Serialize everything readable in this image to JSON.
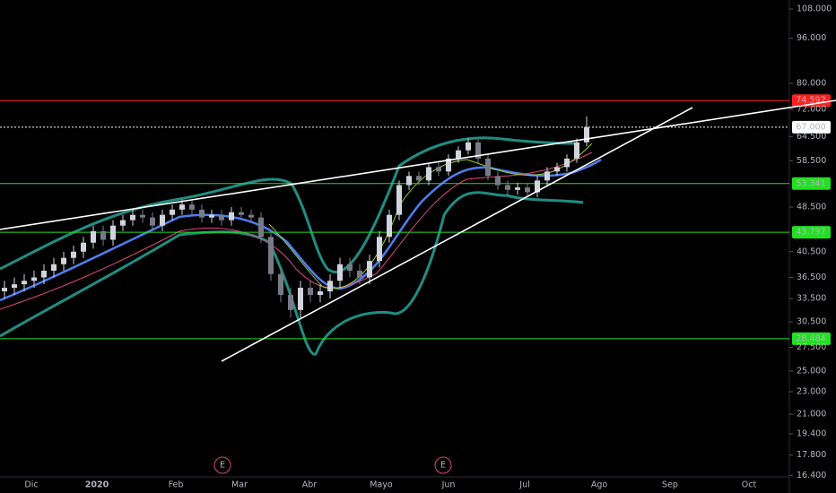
{
  "chart_data": {
    "type": "candlestick",
    "log_scale": true,
    "ylim": [
      16.3,
      112
    ],
    "yticks": [
      {
        "value": 108,
        "label": "108.000"
      },
      {
        "value": 96,
        "label": "96.000"
      },
      {
        "value": 80,
        "label": "80.000"
      },
      {
        "value": 72,
        "label": "72.000"
      },
      {
        "value": 64.5,
        "label": "64.500"
      },
      {
        "value": 58.5,
        "label": "58.500"
      },
      {
        "value": 48.5,
        "label": "48.500"
      },
      {
        "value": 40.5,
        "label": "40.500"
      },
      {
        "value": 36.5,
        "label": "36.500"
      },
      {
        "value": 33.5,
        "label": "33.500"
      },
      {
        "value": 30.5,
        "label": "30.500"
      },
      {
        "value": 27.5,
        "label": "27.500"
      },
      {
        "value": 25,
        "label": "25.000"
      },
      {
        "value": 23,
        "label": "23.000"
      },
      {
        "value": 21,
        "label": "21.000"
      },
      {
        "value": 19.4,
        "label": "19.400"
      },
      {
        "value": 17.8,
        "label": "17.800"
      },
      {
        "value": 16.4,
        "label": "16.400"
      }
    ],
    "xlabels": [
      "Dic",
      "2020",
      "Feb",
      "Mar",
      "Abr",
      "Mayo",
      "Jun",
      "Jul",
      "Ago",
      "Sep",
      "Oct"
    ],
    "events": [
      "E",
      "E"
    ],
    "levels": [
      {
        "value": 74.592,
        "label": "74.592",
        "color": "#ff1f1f"
      },
      {
        "value": 67,
        "label": "67.000",
        "color": "#ffffff"
      },
      {
        "value": 53.341,
        "label": "53.341",
        "color": "#22e022"
      },
      {
        "value": 43.797,
        "label": "43.797",
        "color": "#22e022"
      },
      {
        "value": 28.484,
        "label": "28.484",
        "color": "#22e022"
      }
    ],
    "up_color": "#d1d4dc",
    "down_color": "#787b86",
    "open": [
      34.5,
      35,
      35.5,
      36,
      36.5,
      37.5,
      38.5,
      39.5,
      40.5,
      42,
      44,
      42.5,
      45,
      46,
      47,
      46.5,
      45,
      47,
      48,
      49,
      48,
      46.5,
      47,
      46,
      47.5,
      47,
      46.5,
      43,
      37,
      34,
      32,
      35,
      34,
      34.5,
      36,
      38.5,
      37.5,
      36.5,
      39,
      43,
      47,
      53,
      55,
      54,
      57,
      56,
      59,
      61,
      63,
      59,
      55,
      53,
      52,
      52.5,
      51.5,
      54,
      56,
      57,
      59,
      63
    ],
    "high": [
      36,
      36.5,
      37,
      37.5,
      38.5,
      39.5,
      40.5,
      41.5,
      43,
      45,
      45,
      46,
      47,
      48,
      48,
      47.5,
      48,
      49,
      50,
      50,
      49,
      48,
      48,
      48.5,
      48.5,
      48,
      47.5,
      44,
      38,
      35,
      36,
      36,
      35.5,
      37,
      39.5,
      39.5,
      38.5,
      40,
      44,
      48,
      54,
      56,
      56,
      58,
      58,
      60,
      62,
      64,
      64,
      60,
      56,
      54,
      53.5,
      53.5,
      55,
      57,
      58,
      60,
      64,
      70
    ],
    "low": [
      33.5,
      34,
      34.5,
      35,
      35.5,
      36.5,
      37.5,
      38.5,
      39.5,
      41,
      41.5,
      41.5,
      44,
      45,
      45.5,
      44,
      44,
      46,
      47,
      47,
      45.5,
      45.5,
      45,
      45,
      46.5,
      45.5,
      42,
      36,
      33,
      31,
      31,
      33,
      33,
      33.5,
      35,
      36.5,
      35.5,
      35.5,
      38,
      42,
      46,
      52,
      53,
      53,
      55,
      55,
      58,
      60,
      58,
      54,
      52,
      51,
      51,
      50.5,
      50.5,
      53,
      55,
      56,
      58,
      62
    ],
    "close": [
      35,
      35.5,
      36,
      36.5,
      37.5,
      38.5,
      39.5,
      40.5,
      42,
      44,
      42.5,
      45,
      46,
      47,
      46.5,
      45,
      47,
      48,
      49,
      48,
      46.5,
      47,
      46,
      47.5,
      47,
      46.5,
      43,
      37,
      34,
      32,
      35,
      34,
      34.5,
      36,
      38.5,
      37.5,
      36.5,
      39,
      43,
      47,
      53,
      55,
      54,
      57,
      56,
      59,
      61,
      63,
      59,
      55,
      53,
      52,
      52.5,
      51.5,
      54,
      56,
      57,
      59,
      63,
      67
    ]
  }
}
